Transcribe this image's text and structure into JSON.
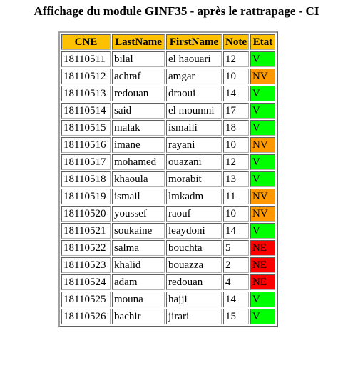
{
  "page": {
    "title": "Affichage du module GINF35 - après le rattrapage - CI"
  },
  "table": {
    "headers": [
      "CNE",
      "LastName",
      "FirstName",
      "Note",
      "Etat"
    ],
    "rows": [
      [
        "18110511",
        "bilal",
        "el haouari",
        "12",
        "V"
      ],
      [
        "18110512",
        "achraf",
        "amgar",
        "10",
        "NV"
      ],
      [
        "18110513",
        "redouan",
        "draoui",
        "14",
        "V"
      ],
      [
        "18110514",
        "said",
        "el moumni",
        "17",
        "V"
      ],
      [
        "18110515",
        "malak",
        "ismaili",
        "18",
        "V"
      ],
      [
        "18110516",
        "imane",
        "rayani",
        "10",
        "NV"
      ],
      [
        "18110517",
        "mohamed",
        "ouazani",
        "12",
        "V"
      ],
      [
        "18110518",
        "khaoula",
        "morabit",
        "13",
        "V"
      ],
      [
        "18110519",
        "ismail",
        "lmkadm",
        "11",
        "NV"
      ],
      [
        "18110520",
        "youssef",
        "raouf",
        "10",
        "NV"
      ],
      [
        "18110521",
        "soukaine",
        "leaydoni",
        "14",
        "V"
      ],
      [
        "18110522",
        "salma",
        "bouchta",
        "5",
        "NE"
      ],
      [
        "18110523",
        "khalid",
        "bouazza",
        "2",
        "NE"
      ],
      [
        "18110524",
        "adam",
        "redouan",
        "4",
        "NE"
      ],
      [
        "18110525",
        "mouna",
        "hajji",
        "14",
        "V"
      ],
      [
        "18110526",
        "bachir",
        "jirari",
        "15",
        "V"
      ]
    ]
  },
  "colors": {
    "header_background": "#ffc000",
    "status_V": "#00ff00",
    "status_NV": "#ff9900",
    "status_NE": "#ff0000"
  }
}
